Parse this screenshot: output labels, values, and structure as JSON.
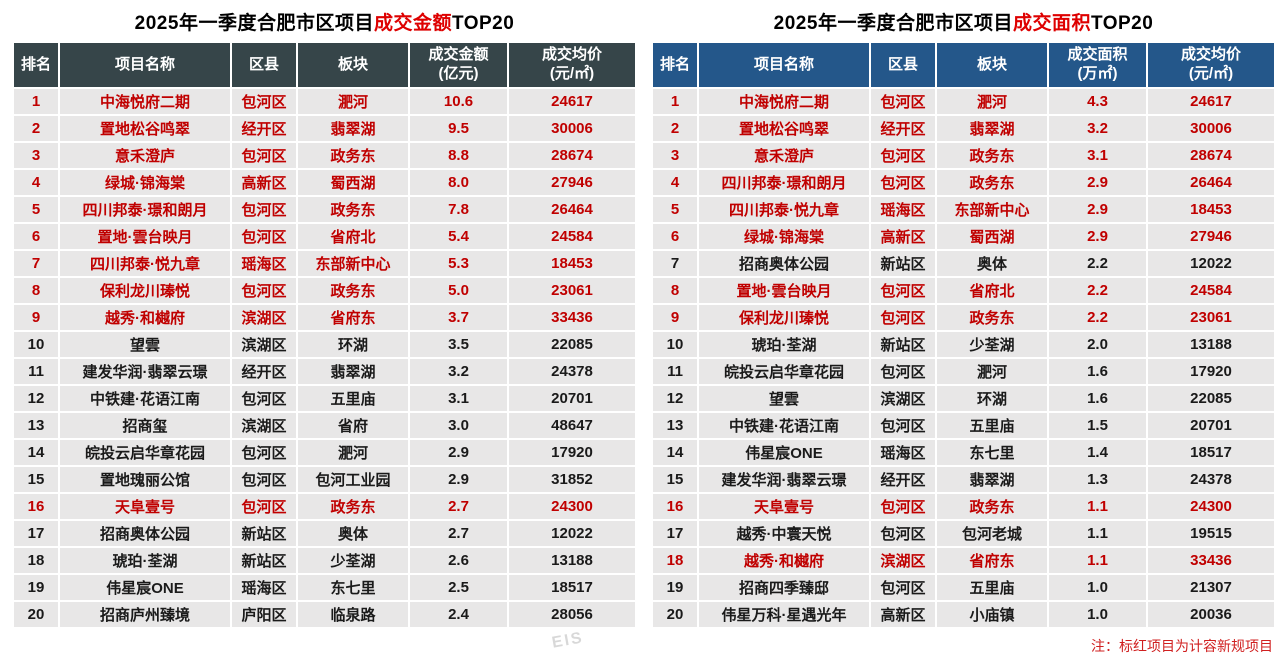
{
  "colors": {
    "title_red": "#DE0000",
    "row_red": "#C00000",
    "note_red": "#D02020",
    "amount_header_bg": "#364549",
    "area_header_bg": "#24578A",
    "cell_bg": "#E8E7E7"
  },
  "note": {
    "text": "注：标红项目为计容新规项目"
  },
  "watermark": {
    "text": "EIS"
  },
  "tables": [
    {
      "id": "amount",
      "title": {
        "prefix": "2025年一季度合肥市区项目",
        "highlight": "成交金额",
        "suffix": "TOP20"
      },
      "header_bg": "#364549",
      "columns": [
        {
          "l1": "排名"
        },
        {
          "l1": "项目名称"
        },
        {
          "l1": "区县"
        },
        {
          "l1": "板块"
        },
        {
          "l1": "成交金额",
          "l2": "(亿元)"
        },
        {
          "l1": "成交均价",
          "l2": "(元/㎡)"
        }
      ],
      "rows": [
        {
          "rank": "1",
          "name": "中海悦府二期",
          "district": "包河区",
          "board": "淝河",
          "value": "10.6",
          "price": "24617",
          "red": true
        },
        {
          "rank": "2",
          "name": "置地松谷鸣翠",
          "district": "经开区",
          "board": "翡翠湖",
          "value": "9.5",
          "price": "30006",
          "red": true
        },
        {
          "rank": "3",
          "name": "意禾澄庐",
          "district": "包河区",
          "board": "政务东",
          "value": "8.8",
          "price": "28674",
          "red": true
        },
        {
          "rank": "4",
          "name": "绿城·锦海棠",
          "district": "高新区",
          "board": "蜀西湖",
          "value": "8.0",
          "price": "27946",
          "red": true
        },
        {
          "rank": "5",
          "name": "四川邦泰·璟和朗月",
          "district": "包河区",
          "board": "政务东",
          "value": "7.8",
          "price": "26464",
          "red": true
        },
        {
          "rank": "6",
          "name": "置地·雲台映月",
          "district": "包河区",
          "board": "省府北",
          "value": "5.4",
          "price": "24584",
          "red": true
        },
        {
          "rank": "7",
          "name": "四川邦泰·悦九章",
          "district": "瑶海区",
          "board": "东部新中心",
          "value": "5.3",
          "price": "18453",
          "red": true
        },
        {
          "rank": "8",
          "name": "保利龙川瑧悦",
          "district": "包河区",
          "board": "政务东",
          "value": "5.0",
          "price": "23061",
          "red": true
        },
        {
          "rank": "9",
          "name": "越秀·和樾府",
          "district": "滨湖区",
          "board": "省府东",
          "value": "3.7",
          "price": "33436",
          "red": true
        },
        {
          "rank": "10",
          "name": "望雲",
          "district": "滨湖区",
          "board": "环湖",
          "value": "3.5",
          "price": "22085",
          "red": false
        },
        {
          "rank": "11",
          "name": "建发华润·翡翠云璟",
          "district": "经开区",
          "board": "翡翠湖",
          "value": "3.2",
          "price": "24378",
          "red": false
        },
        {
          "rank": "12",
          "name": "中铁建·花语江南",
          "district": "包河区",
          "board": "五里庙",
          "value": "3.1",
          "price": "20701",
          "red": false
        },
        {
          "rank": "13",
          "name": "招商玺",
          "district": "滨湖区",
          "board": "省府",
          "value": "3.0",
          "price": "48647",
          "red": false
        },
        {
          "rank": "14",
          "name": "皖投云启华章花园",
          "district": "包河区",
          "board": "淝河",
          "value": "2.9",
          "price": "17920",
          "red": false
        },
        {
          "rank": "15",
          "name": "置地瑰丽公馆",
          "district": "包河区",
          "board": "包河工业园",
          "value": "2.9",
          "price": "31852",
          "red": false
        },
        {
          "rank": "16",
          "name": "天阜壹号",
          "district": "包河区",
          "board": "政务东",
          "value": "2.7",
          "price": "24300",
          "red": true
        },
        {
          "rank": "17",
          "name": "招商奥体公园",
          "district": "新站区",
          "board": "奥体",
          "value": "2.7",
          "price": "12022",
          "red": false
        },
        {
          "rank": "18",
          "name": "琥珀·荃湖",
          "district": "新站区",
          "board": "少荃湖",
          "value": "2.6",
          "price": "13188",
          "red": false
        },
        {
          "rank": "19",
          "name": "伟星宸ONE",
          "district": "瑶海区",
          "board": "东七里",
          "value": "2.5",
          "price": "18517",
          "red": false
        },
        {
          "rank": "20",
          "name": "招商庐州臻境",
          "district": "庐阳区",
          "board": "临泉路",
          "value": "2.4",
          "price": "28056",
          "red": false
        }
      ]
    },
    {
      "id": "area",
      "title": {
        "prefix": "2025年一季度合肥市区项目",
        "highlight": "成交面积",
        "suffix": "TOP20"
      },
      "header_bg": "#24578A",
      "columns": [
        {
          "l1": "排名"
        },
        {
          "l1": "项目名称"
        },
        {
          "l1": "区县"
        },
        {
          "l1": "板块"
        },
        {
          "l1": "成交面积",
          "l2": "(万㎡)"
        },
        {
          "l1": "成交均价",
          "l2": "(元/㎡)"
        }
      ],
      "rows": [
        {
          "rank": "1",
          "name": "中海悦府二期",
          "district": "包河区",
          "board": "淝河",
          "value": "4.3",
          "price": "24617",
          "red": true
        },
        {
          "rank": "2",
          "name": "置地松谷鸣翠",
          "district": "经开区",
          "board": "翡翠湖",
          "value": "3.2",
          "price": "30006",
          "red": true
        },
        {
          "rank": "3",
          "name": "意禾澄庐",
          "district": "包河区",
          "board": "政务东",
          "value": "3.1",
          "price": "28674",
          "red": true
        },
        {
          "rank": "4",
          "name": "四川邦泰·璟和朗月",
          "district": "包河区",
          "board": "政务东",
          "value": "2.9",
          "price": "26464",
          "red": true
        },
        {
          "rank": "5",
          "name": "四川邦泰·悦九章",
          "district": "瑶海区",
          "board": "东部新中心",
          "value": "2.9",
          "price": "18453",
          "red": true
        },
        {
          "rank": "6",
          "name": "绿城·锦海棠",
          "district": "高新区",
          "board": "蜀西湖",
          "value": "2.9",
          "price": "27946",
          "red": true
        },
        {
          "rank": "7",
          "name": "招商奥体公园",
          "district": "新站区",
          "board": "奥体",
          "value": "2.2",
          "price": "12022",
          "red": false
        },
        {
          "rank": "8",
          "name": "置地·雲台映月",
          "district": "包河区",
          "board": "省府北",
          "value": "2.2",
          "price": "24584",
          "red": true
        },
        {
          "rank": "9",
          "name": "保利龙川瑧悦",
          "district": "包河区",
          "board": "政务东",
          "value": "2.2",
          "price": "23061",
          "red": true
        },
        {
          "rank": "10",
          "name": "琥珀·荃湖",
          "district": "新站区",
          "board": "少荃湖",
          "value": "2.0",
          "price": "13188",
          "red": false
        },
        {
          "rank": "11",
          "name": "皖投云启华章花园",
          "district": "包河区",
          "board": "淝河",
          "value": "1.6",
          "price": "17920",
          "red": false
        },
        {
          "rank": "12",
          "name": "望雲",
          "district": "滨湖区",
          "board": "环湖",
          "value": "1.6",
          "price": "22085",
          "red": false
        },
        {
          "rank": "13",
          "name": "中铁建·花语江南",
          "district": "包河区",
          "board": "五里庙",
          "value": "1.5",
          "price": "20701",
          "red": false
        },
        {
          "rank": "14",
          "name": "伟星宸ONE",
          "district": "瑶海区",
          "board": "东七里",
          "value": "1.4",
          "price": "18517",
          "red": false
        },
        {
          "rank": "15",
          "name": "建发华润·翡翠云璟",
          "district": "经开区",
          "board": "翡翠湖",
          "value": "1.3",
          "price": "24378",
          "red": false
        },
        {
          "rank": "16",
          "name": "天阜壹号",
          "district": "包河区",
          "board": "政务东",
          "value": "1.1",
          "price": "24300",
          "red": true
        },
        {
          "rank": "17",
          "name": "越秀·中寰天悦",
          "district": "包河区",
          "board": "包河老城",
          "value": "1.1",
          "price": "19515",
          "red": false
        },
        {
          "rank": "18",
          "name": "越秀·和樾府",
          "district": "滨湖区",
          "board": "省府东",
          "value": "1.1",
          "price": "33436",
          "red": true
        },
        {
          "rank": "19",
          "name": "招商四季臻邸",
          "district": "包河区",
          "board": "五里庙",
          "value": "1.0",
          "price": "21307",
          "red": false
        },
        {
          "rank": "20",
          "name": "伟星万科·星遇光年",
          "district": "高新区",
          "board": "小庙镇",
          "value": "1.0",
          "price": "20036",
          "red": false
        }
      ]
    }
  ]
}
